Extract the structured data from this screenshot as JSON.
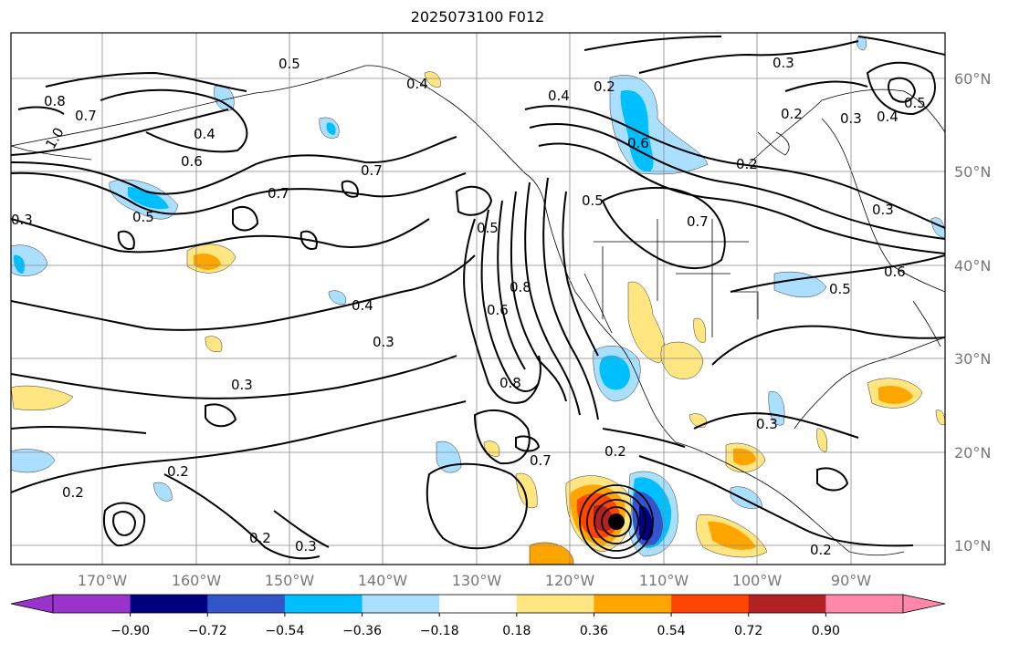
{
  "title": "2025073100 F012",
  "latitude_labels": [
    "60°N",
    "50°N",
    "40°N",
    "30°N",
    "20°N",
    "10°N"
  ],
  "longitude_labels": [
    "170°W",
    "160°W",
    "150°W",
    "140°W",
    "130°W",
    "120°W",
    "110°W",
    "100°W",
    "90°W"
  ],
  "contour_labels": [
    "0.8",
    "0.7",
    "1.0",
    "0.5",
    "0.4",
    "0.6",
    "0.7",
    "0.7",
    "0.3",
    "0.5",
    "0.4",
    "0.3",
    "0.3",
    "0.2",
    "0.2",
    "0.2",
    "0.3",
    "0.4",
    "0.2",
    "0.6",
    "0.5",
    "0.5",
    "0.7",
    "0.8",
    "0.6",
    "0.8",
    "0.7",
    "0.2",
    "0.4",
    "0.3",
    "0.2",
    "0.3",
    "0.4",
    "0.5",
    "0.2",
    "0.5",
    "0.6",
    "0.3",
    "0.3",
    "0.2"
  ],
  "colorbar": {
    "ticks": [
      "−0.90",
      "−0.72",
      "−0.54",
      "−0.36",
      "−0.18",
      "0.18",
      "0.36",
      "0.54",
      "0.72",
      "0.90"
    ],
    "colors": [
      "#9933cc",
      "#000080",
      "#3355cc",
      "#00bfff",
      "#aadfff",
      "#ffffff",
      "#ffe680",
      "#ffa500",
      "#ff4500",
      "#b22222",
      "#ff88aa"
    ]
  }
}
